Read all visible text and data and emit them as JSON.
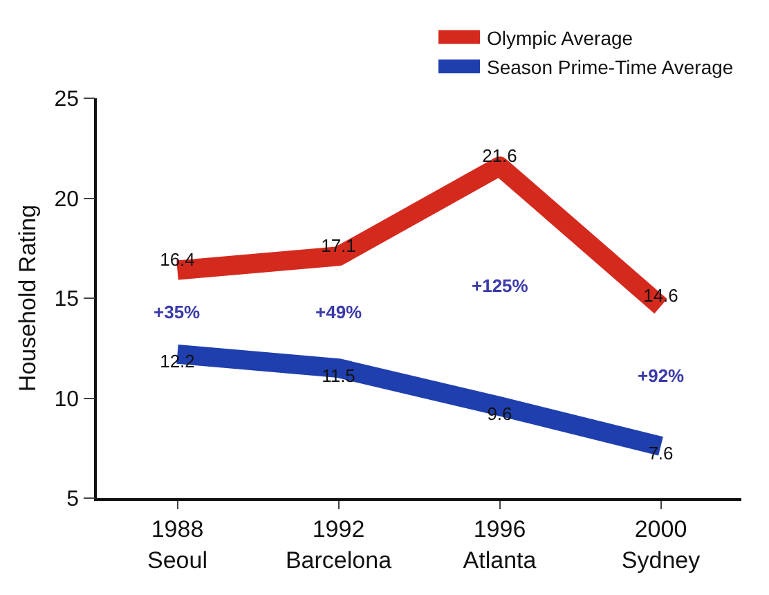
{
  "chart_data": {
    "type": "line",
    "ylabel": "Household Rating",
    "categories": [
      "1988\nSeoul",
      "1992\nBarcelona",
      "1996\nAtlanta",
      "2000\nSydney"
    ],
    "series": [
      {
        "name": "Olympic Average",
        "color": "#d42a1e",
        "values": [
          16.4,
          17.1,
          21.6,
          14.6
        ]
      },
      {
        "name": "Season Prime-Time Average",
        "color": "#1f3fae",
        "values": [
          12.2,
          11.5,
          9.6,
          7.6
        ]
      }
    ],
    "ylim": [
      5,
      25
    ],
    "yticks": [
      5,
      10,
      15,
      20,
      25
    ],
    "grid": false,
    "legend": "top right",
    "data_labels": true,
    "marker": "none",
    "line_style": "solid",
    "annotations": [
      "+35%",
      "+49%",
      "+125%",
      "+92%"
    ]
  }
}
